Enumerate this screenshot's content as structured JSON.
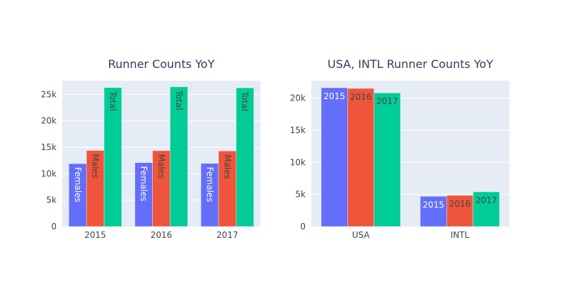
{
  "colors": {
    "plot_bg": "#e5ecf6",
    "grid": "#ffffff",
    "text": "#2a3f5f",
    "tick": "#444444",
    "series": [
      "#636efa",
      "#ef553b",
      "#00cc96"
    ],
    "label_colors": [
      "#ffffff",
      "#444444",
      "#444444"
    ]
  },
  "chart_data": [
    {
      "type": "bar",
      "title": "Runner Counts YoY",
      "categories": [
        "2015",
        "2016",
        "2017"
      ],
      "series": [
        {
          "name": "Females",
          "values": [
            11900,
            12100,
            11950
          ],
          "bar_text": "Females"
        },
        {
          "name": "Males",
          "values": [
            14400,
            14350,
            14300
          ],
          "bar_text": "Males"
        },
        {
          "name": "Total",
          "values": [
            26300,
            26450,
            26250
          ],
          "bar_text": "Total"
        }
      ],
      "text_orientation": "vertical",
      "ylim": [
        0,
        27600
      ],
      "yticks": [
        0,
        5000,
        10000,
        15000,
        20000,
        25000
      ],
      "ytick_labels": [
        "0",
        "5k",
        "10k",
        "15k",
        "20k",
        "25k"
      ],
      "grid": true,
      "legend": "none"
    },
    {
      "type": "bar",
      "title": "USA, INTL Runner Counts YoY",
      "categories": [
        "USA",
        "INTL"
      ],
      "series": [
        {
          "name": "2015",
          "values": [
            21600,
            4700
          ],
          "bar_text": "2015"
        },
        {
          "name": "2016",
          "values": [
            21500,
            4850
          ],
          "bar_text": "2016"
        },
        {
          "name": "2017",
          "values": [
            20800,
            5400
          ],
          "bar_text": "2017"
        }
      ],
      "text_orientation": "horizontal",
      "ylim": [
        0,
        22700
      ],
      "yticks": [
        0,
        5000,
        10000,
        15000,
        20000
      ],
      "ytick_labels": [
        "0",
        "5k",
        "10k",
        "15k",
        "20k"
      ],
      "grid": true,
      "legend": "none"
    }
  ]
}
